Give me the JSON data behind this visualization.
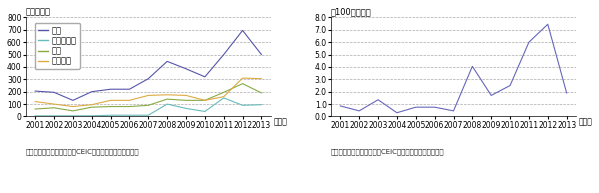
{
  "years": [
    2001,
    2002,
    2003,
    2004,
    2005,
    2006,
    2007,
    2008,
    2009,
    2010,
    2011,
    2012,
    2013
  ],
  "left": {
    "ylabel": "（億ドル）",
    "ylim": [
      0,
      800
    ],
    "yticks": [
      0,
      100,
      200,
      300,
      400,
      500,
      600,
      700,
      800
    ],
    "series": {
      "全体": {
        "color": "#5555aa",
        "values": [
          205,
          195,
          130,
          200,
          220,
          220,
          305,
          445,
          385,
          320,
          500,
          695,
          500
        ]
      },
      "鉱業、農業": {
        "color": "#66bbbb",
        "values": [
          5,
          5,
          5,
          5,
          10,
          10,
          10,
          100,
          65,
          40,
          150,
          90,
          95
        ]
      },
      "製造": {
        "color": "#88aa44",
        "values": [
          60,
          70,
          45,
          75,
          80,
          80,
          90,
          140,
          130,
          130,
          195,
          265,
          190
        ]
      },
      "サービス": {
        "color": "#ddaa44",
        "values": [
          120,
          100,
          80,
          95,
          130,
          130,
          170,
          175,
          170,
          130,
          160,
          310,
          305
        ]
      }
    },
    "source": "資料：ブラジル中央銀行、CEICデータベースから作成。"
  },
  "right": {
    "ylabel": "（100万ドル）",
    "ylim": [
      0,
      8.0
    ],
    "yticks": [
      0.0,
      1.0,
      2.0,
      3.0,
      4.0,
      5.0,
      6.0,
      7.0,
      8.0
    ],
    "series": {
      "jp": {
        "color": "#6666bb",
        "values": [
          0.85,
          0.45,
          1.35,
          0.3,
          0.75,
          0.75,
          0.45,
          4.05,
          1.7,
          2.5,
          6.0,
          7.45,
          1.9
        ]
      }
    },
    "source": "資料：ブラジル中央銀行、CEICデータベースから作成。"
  },
  "xlabel_suffix": "（年）",
  "legend_labels": [
    "全体",
    "鉱業、農業",
    "製造",
    "サービス"
  ],
  "bg_color": "#ffffff",
  "grid_color": "#aaaaaa",
  "grid_style": "--",
  "tick_fontsize": 5.5,
  "label_fontsize": 6,
  "legend_fontsize": 6,
  "source_fontsize": 5
}
